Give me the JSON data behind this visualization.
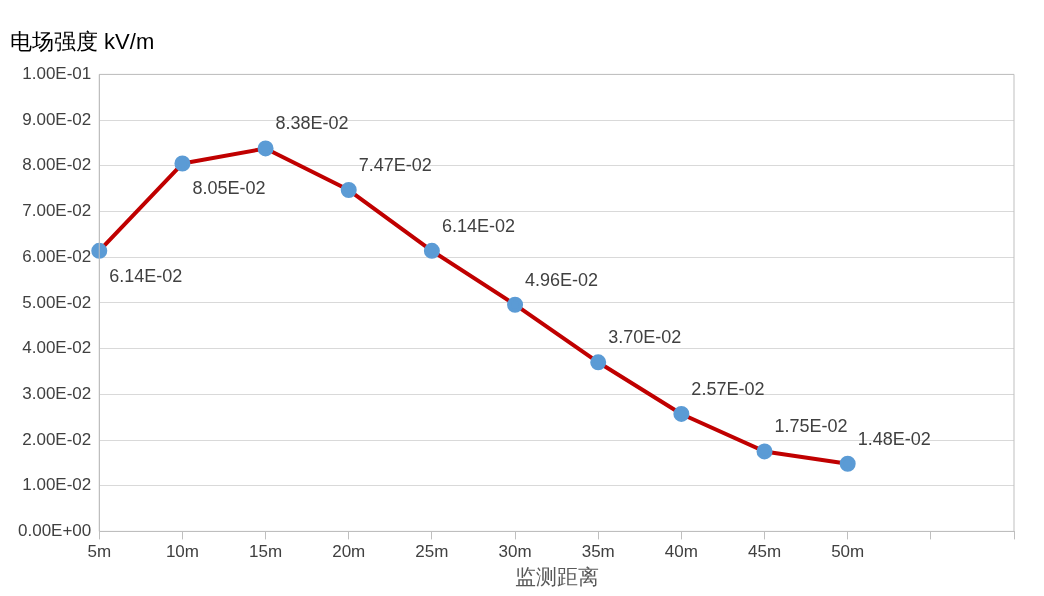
{
  "chart_data": {
    "type": "line",
    "title": "电场强度 kV/m",
    "xlabel": "监测距离",
    "categories": [
      "5m",
      "10m",
      "15m",
      "20m",
      "25m",
      "30m",
      "35m",
      "40m",
      "45m",
      "50m",
      null,
      null
    ],
    "series": [
      {
        "color": "#c00000",
        "values": [
          0.0614,
          0.0805,
          0.0838,
          0.0747,
          0.0614,
          0.0496,
          0.037,
          0.0257,
          0.0175,
          0.0148,
          null,
          null
        ],
        "colors": [
          "#5b9bd5",
          "#5b9bd5",
          "#5b9bd5",
          "#5b9bd5",
          "#5b9bd5",
          "#5b9bd5",
          "#5b9bd5",
          "#5b9bd5",
          "#5b9bd5",
          "#5b9bd5",
          null,
          null
        ],
        "value_labels": [
          "6.14E-02",
          "8.05E-02",
          "8.38E-02",
          "7.47E-02",
          "6.14E-02",
          "4.96E-02",
          "3.70E-02",
          "2.57E-02",
          "1.75E-02",
          "1.48E-02",
          null,
          null
        ]
      }
    ],
    "marker": "circle",
    "ylim": [
      0,
      0.1
    ],
    "yticks": [
      {
        "value": 0,
        "label": "0.00E+00"
      },
      {
        "value": 0.01,
        "label": "1.00E-02"
      },
      {
        "value": 0.02,
        "label": "2.00E-02"
      },
      {
        "value": 0.03,
        "label": "3.00E-02"
      },
      {
        "value": 0.04,
        "label": "4.00E-02"
      },
      {
        "value": 0.05,
        "label": "5.00E-02"
      },
      {
        "value": 0.06,
        "label": "6.00E-02"
      },
      {
        "value": 0.07,
        "label": "7.00E-02"
      },
      {
        "value": 0.08,
        "label": "8.00E-02"
      },
      {
        "value": 0.09,
        "label": "9.00E-02"
      },
      {
        "value": 0.1,
        "label": "1.00E-01"
      }
    ],
    "grid": "y",
    "legend": false
  }
}
